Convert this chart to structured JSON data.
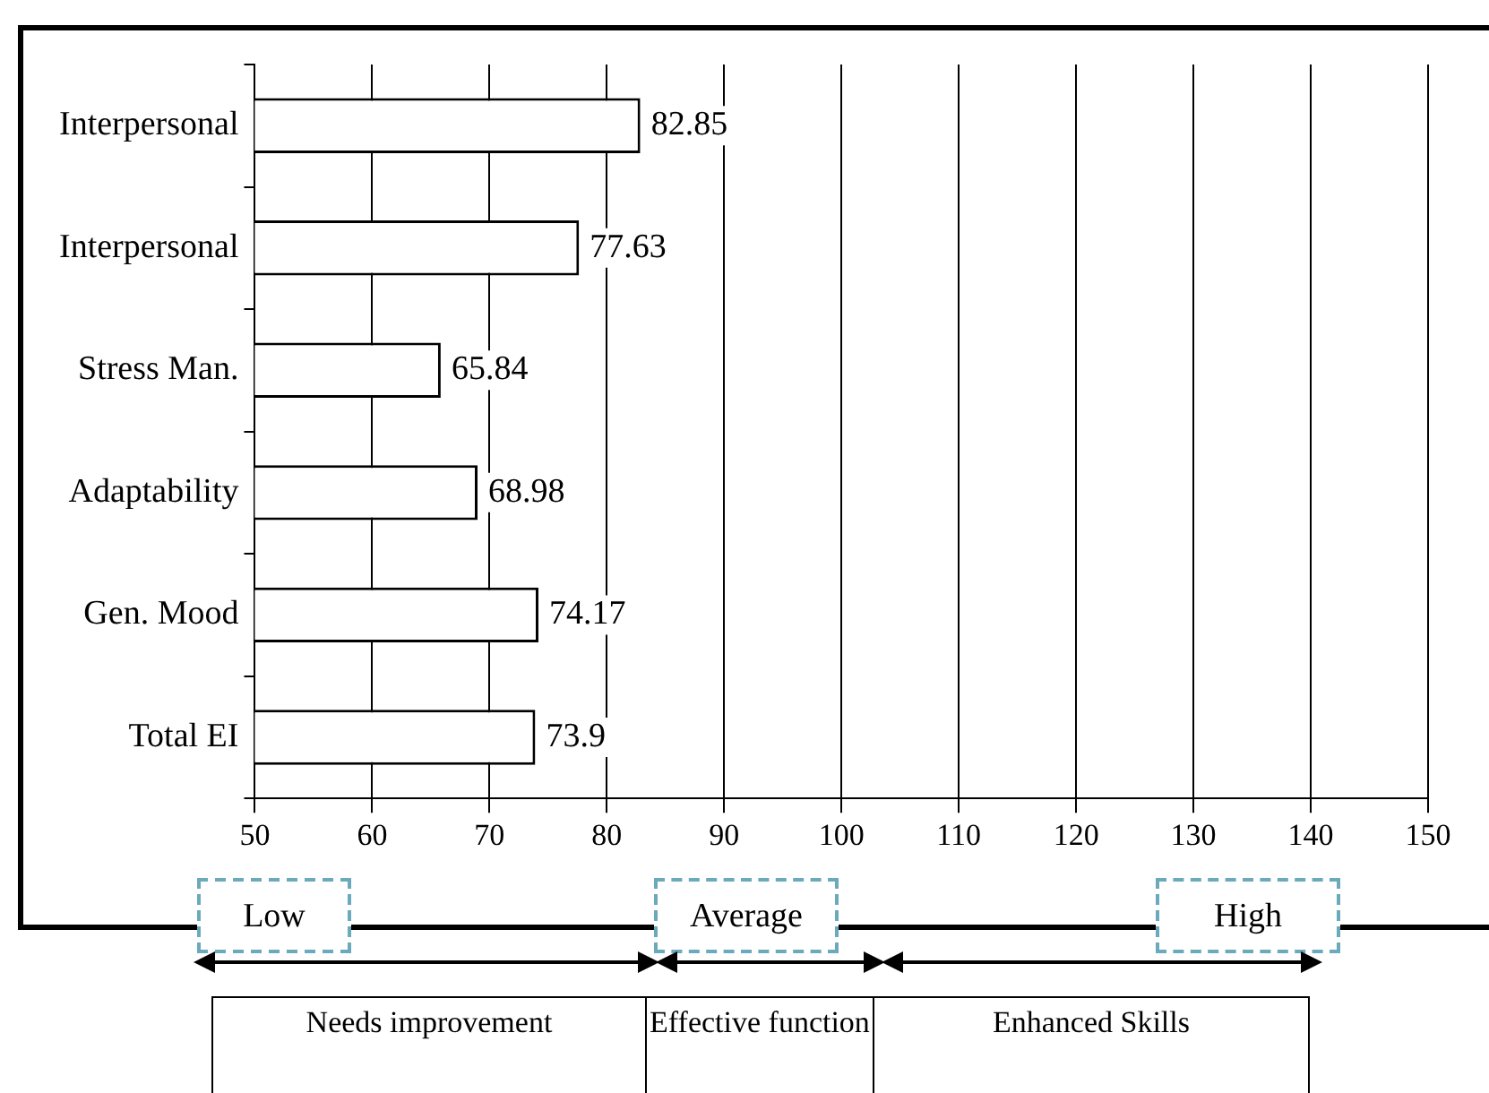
{
  "chart_data": {
    "type": "bar",
    "orientation": "horizontal",
    "categories": [
      "Interpersonal",
      "Interpersonal",
      "Stress Man.",
      "Adaptability",
      "Gen. Mood",
      "Total EI"
    ],
    "values": [
      82.85,
      77.63,
      65.84,
      68.98,
      74.17,
      73.9
    ],
    "color": "#ffffff",
    "xlim": [
      50,
      150
    ],
    "xticks": [
      50,
      60,
      70,
      80,
      90,
      100,
      110,
      120,
      130,
      140,
      150
    ],
    "grid": "x",
    "data_labels": true,
    "legend": false,
    "annotations": [
      "Low",
      "Average",
      "High",
      "Needs improvement",
      "Effective function",
      "Enhanced Skills"
    ]
  }
}
